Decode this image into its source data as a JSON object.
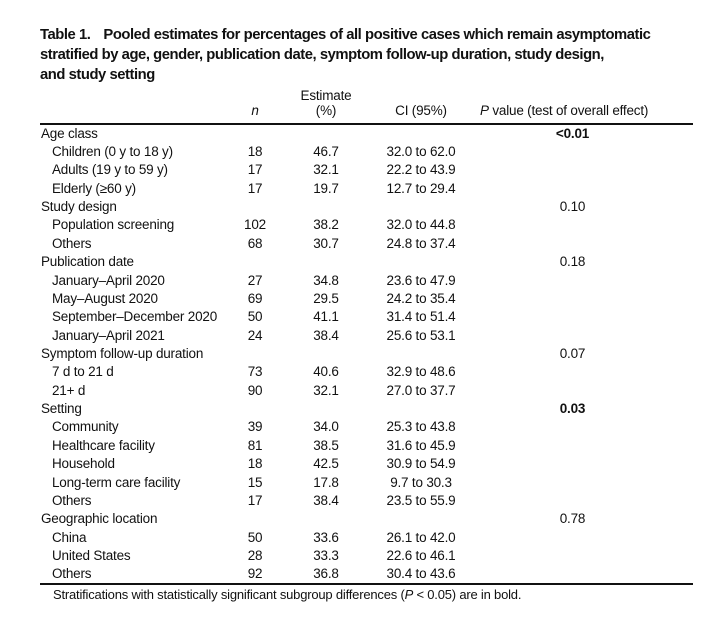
{
  "page": {
    "background": "#ffffff",
    "text_color": "#111111"
  },
  "title": {
    "label": "Table 1.",
    "line1_rest": "Pooled estimates for percentages of all positive cases which remain asymptomatic",
    "line2": "stratified by age, gender, publication date, symptom follow-up duration, study design,",
    "line3": "and study setting"
  },
  "table": {
    "columns": {
      "n": "n",
      "estimate": "Estimate (%)",
      "ci": "CI (95%)",
      "p_italic": "P",
      "p_rest": " value (test of overall effect)"
    },
    "sections": [
      {
        "label": "Age class",
        "p_value": "<0.01",
        "p_bold": true,
        "rows": [
          {
            "label": "Children (0 y to 18 y)",
            "n": "18",
            "estimate": "46.7",
            "ci": "32.0 to 62.0"
          },
          {
            "label": "Adults (19 y to 59 y)",
            "n": "17",
            "estimate": "32.1",
            "ci": "22.2 to 43.9"
          },
          {
            "label": "Elderly (≥60 y)",
            "n": "17",
            "estimate": "19.7",
            "ci": "12.7 to 29.4"
          }
        ]
      },
      {
        "label": "Study design",
        "p_value": "0.10",
        "p_bold": false,
        "rows": [
          {
            "label": "Population screening",
            "n": "102",
            "estimate": "38.2",
            "ci": "32.0 to 44.8"
          },
          {
            "label": "Others",
            "n": "68",
            "estimate": "30.7",
            "ci": "24.8 to 37.4"
          }
        ]
      },
      {
        "label": "Publication date",
        "p_value": "0.18",
        "p_bold": false,
        "rows": [
          {
            "label": "January–April 2020",
            "n": "27",
            "estimate": "34.8",
            "ci": "23.6 to 47.9"
          },
          {
            "label": "May–August 2020",
            "n": "69",
            "estimate": "29.5",
            "ci": "24.2 to 35.4"
          },
          {
            "label": "September–December 2020",
            "n": "50",
            "estimate": "41.1",
            "ci": "31.4 to 51.4"
          },
          {
            "label": "January–April 2021",
            "n": "24",
            "estimate": "38.4",
            "ci": "25.6 to 53.1"
          }
        ]
      },
      {
        "label": "Symptom follow-up duration",
        "p_value": "0.07",
        "p_bold": false,
        "rows": [
          {
            "label": "7 d to 21 d",
            "n": "73",
            "estimate": "40.6",
            "ci": "32.9 to 48.6"
          },
          {
            "label": "21+ d",
            "n": "90",
            "estimate": "32.1",
            "ci": "27.0 to 37.7"
          }
        ]
      },
      {
        "label": "Setting",
        "p_value": "0.03",
        "p_bold": true,
        "rows": [
          {
            "label": "Community",
            "n": "39",
            "estimate": "34.0",
            "ci": "25.3 to 43.8"
          },
          {
            "label": "Healthcare facility",
            "n": "81",
            "estimate": "38.5",
            "ci": "31.6 to 45.9"
          },
          {
            "label": "Household",
            "n": "18",
            "estimate": "42.5",
            "ci": "30.9 to 54.9"
          },
          {
            "label": "Long-term care facility",
            "n": "15",
            "estimate": "17.8",
            "ci": "9.7 to 30.3"
          },
          {
            "label": "Others",
            "n": "17",
            "estimate": "38.4",
            "ci": "23.5 to 55.9"
          }
        ]
      },
      {
        "label": "Geographic location",
        "p_value": "0.78",
        "p_bold": false,
        "rows": [
          {
            "label": "China",
            "n": "50",
            "estimate": "33.6",
            "ci": "26.1 to 42.0"
          },
          {
            "label": "United States",
            "n": "28",
            "estimate": "33.3",
            "ci": "22.6 to 46.1"
          },
          {
            "label": "Others",
            "n": "92",
            "estimate": "36.8",
            "ci": "30.4 to 43.6"
          }
        ]
      }
    ]
  },
  "footnote": {
    "pre": "Stratifications with statistically significant subgroup differences (",
    "p_italic": "P",
    "post": " < 0.05) are in bold."
  }
}
